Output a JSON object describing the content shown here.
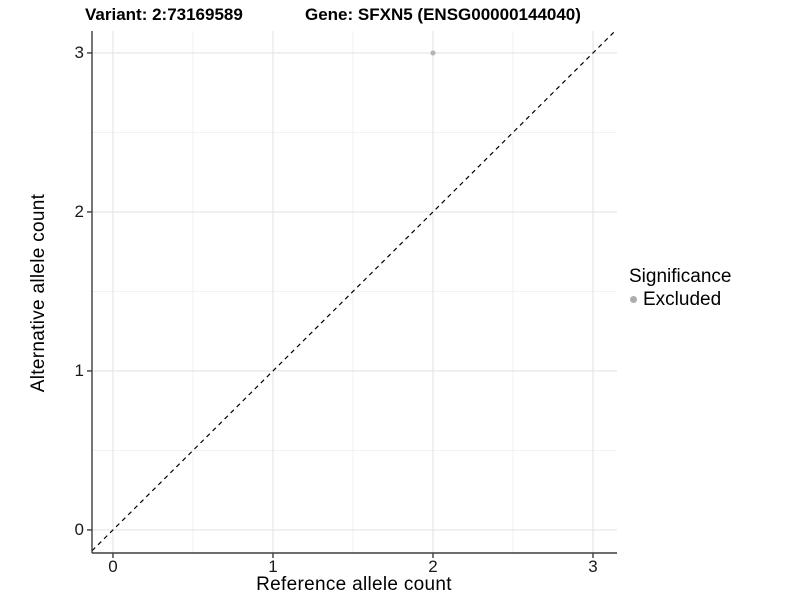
{
  "header": {
    "variant_title": "Variant: 2:73169589",
    "gene_title": "Gene: SFXN5 (ENSG00000144040)"
  },
  "chart_data": {
    "type": "scatter",
    "title": "Variant: 2:73169589  Gene: SFXN5 (ENSG00000144040)",
    "xlabel": "Reference allele count",
    "ylabel": "Alternative allele count",
    "xlim": [
      -0.131,
      3.15
    ],
    "ylim": [
      -0.145,
      3.138
    ],
    "x_ticks": [
      0,
      1,
      2,
      3
    ],
    "y_ticks": [
      0,
      1,
      2,
      3
    ],
    "grid": {
      "major": [
        0,
        1,
        2,
        3
      ],
      "minor": [
        0.5,
        1.5,
        2.5
      ]
    },
    "series": [
      {
        "name": "Excluded",
        "color": "#b5b5b5",
        "points": [
          {
            "x": 2,
            "y": 3
          }
        ]
      }
    ],
    "reference_line": {
      "kind": "identity",
      "slope": 1,
      "intercept": 0,
      "style": "dashed",
      "color": "#000000"
    },
    "legend": {
      "title": "Significance",
      "position": "right",
      "entries": [
        {
          "label": "Excluded",
          "color": "#adadad"
        }
      ]
    }
  },
  "colors": {
    "background": "#ffffff",
    "grid_major": "#e4e4e4",
    "grid_minor": "#f0f0f0",
    "axis_line": "#3d3d3d",
    "tick_label": "#1a1a1a"
  }
}
